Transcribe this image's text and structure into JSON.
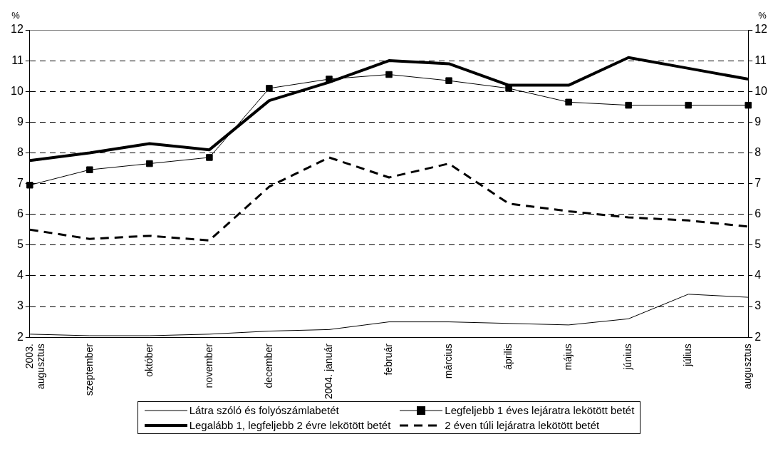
{
  "chart_data": {
    "type": "line",
    "ylabel": "%",
    "y2label": "%",
    "categories": [
      "2003.\naugusztus",
      "szeptember",
      "október",
      "november",
      "december",
      "2004. január",
      "február",
      "március",
      "április",
      "május",
      "június",
      "július",
      "augusztus"
    ],
    "series": [
      {
        "name": "Látra szóló és folyószámlabetét",
        "color": "#000000",
        "marker": "none",
        "line_style": "solid",
        "values": [
          2.1,
          2.05,
          2.05,
          2.1,
          2.2,
          2.25,
          2.5,
          2.5,
          2.45,
          2.4,
          2.6,
          3.4,
          3.3
        ]
      },
      {
        "name": "Legfeljebb 1 éves lejáratra lekötött betét",
        "color": "#000000",
        "marker": "square",
        "line_style": "solid",
        "values": [
          6.95,
          7.45,
          7.65,
          7.85,
          10.1,
          10.4,
          10.55,
          10.35,
          10.1,
          9.65,
          9.55,
          9.55,
          9.55
        ]
      },
      {
        "name": "Legalább 1, legfeljebb 2 évre lekötött betét",
        "color": "#000000",
        "marker": "none",
        "line_style": "solid",
        "values": [
          7.75,
          8.0,
          8.3,
          8.1,
          9.7,
          10.3,
          11.0,
          10.9,
          10.2,
          10.2,
          11.1,
          10.75,
          10.4
        ]
      },
      {
        "name": "2 éven túli lejáratra lekötött betét",
        "color": "#000000",
        "marker": "none",
        "line_style": "dashed",
        "values": [
          5.5,
          5.2,
          5.3,
          5.15,
          6.9,
          7.85,
          7.2,
          7.65,
          6.35,
          6.1,
          5.9,
          5.8,
          5.6
        ]
      }
    ],
    "ylim": [
      2,
      12
    ],
    "yticks": [
      2,
      3,
      4,
      5,
      6,
      7,
      8,
      9,
      10,
      11,
      12
    ],
    "y2lim": [
      2,
      12
    ],
    "y2ticks": [
      2,
      3,
      4,
      5,
      6,
      7,
      8,
      9,
      10,
      11,
      12
    ],
    "grid": "y",
    "legend": "bottom"
  }
}
